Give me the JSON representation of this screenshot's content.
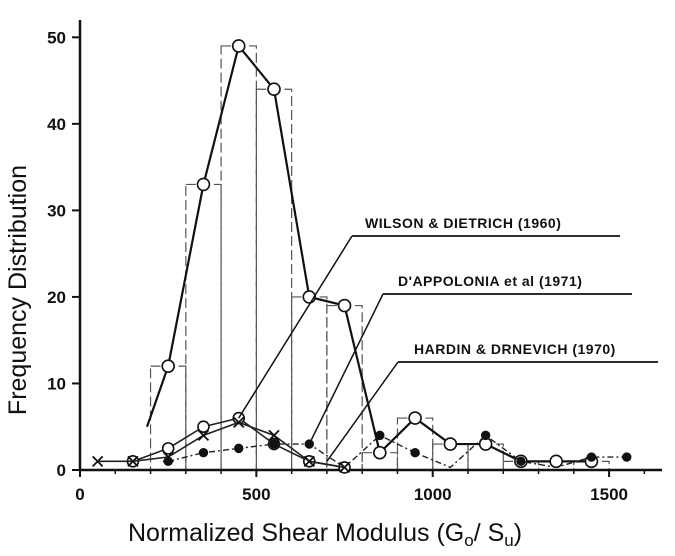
{
  "chart_data": {
    "type": "line",
    "title": "",
    "xlabel": "Normalized Shear Modulus (G",
    "xlabel_sub1": "o",
    "xlabel_mid": "/ S",
    "xlabel_sub2": "u",
    "xlabel_end": ")",
    "ylabel": "Frequency  Distribution",
    "xlim": [
      0,
      1650
    ],
    "ylim": [
      0,
      52
    ],
    "x_ticks": [
      0,
      500,
      1000,
      1500
    ],
    "y_ticks": [
      0,
      10,
      20,
      30,
      40,
      50
    ],
    "grid": false,
    "histogram": {
      "bin_width": 100,
      "bin_starts": [
        200,
        300,
        400,
        500,
        600,
        700,
        800,
        900,
        1000,
        1100,
        1200,
        1300,
        1400
      ],
      "values": [
        12,
        33,
        49,
        44,
        20,
        19,
        2,
        6,
        3,
        3,
        1,
        1,
        1
      ]
    },
    "series": [
      {
        "name": "",
        "marker": "open-circle",
        "x": [
          190,
          250,
          350,
          450,
          550,
          650,
          750,
          850,
          950,
          1050,
          1150,
          1250,
          1350,
          1450
        ],
        "y": [
          5,
          12,
          33,
          49,
          44,
          20,
          19,
          2,
          6,
          3,
          3,
          1,
          1,
          1
        ]
      },
      {
        "name": "",
        "marker": "open-circle",
        "x": [
          150,
          250,
          350,
          450,
          550,
          650,
          750
        ],
        "y": [
          1,
          2.5,
          5,
          6,
          3,
          1,
          0.3
        ]
      },
      {
        "name": "",
        "marker": "cross",
        "x": [
          50,
          150,
          250,
          350,
          450,
          550,
          650,
          750
        ],
        "y": [
          1,
          1,
          1.5,
          4,
          5.5,
          4,
          1,
          0.3
        ]
      },
      {
        "name": "",
        "marker": "filled-circle",
        "x": [
          250,
          350,
          450,
          550,
          650,
          750,
          850,
          950,
          1050,
          1150,
          1250,
          1350,
          1450,
          1550
        ],
        "y": [
          1,
          2,
          2.5,
          3,
          3,
          0.3,
          4,
          2,
          0.3,
          4,
          1,
          0.3,
          1.5,
          1.5
        ]
      }
    ],
    "annotations": [
      {
        "label": "WILSON & DIETRICH (1960)",
        "target_x": 450,
        "target_y": 6
      },
      {
        "label": "D'APPOLONIA et al (1971)",
        "target_x": 650,
        "target_y": 3
      },
      {
        "label": "HARDIN & DRNEVICH (1970)",
        "target_x": 700,
        "target_y": 1
      }
    ]
  }
}
